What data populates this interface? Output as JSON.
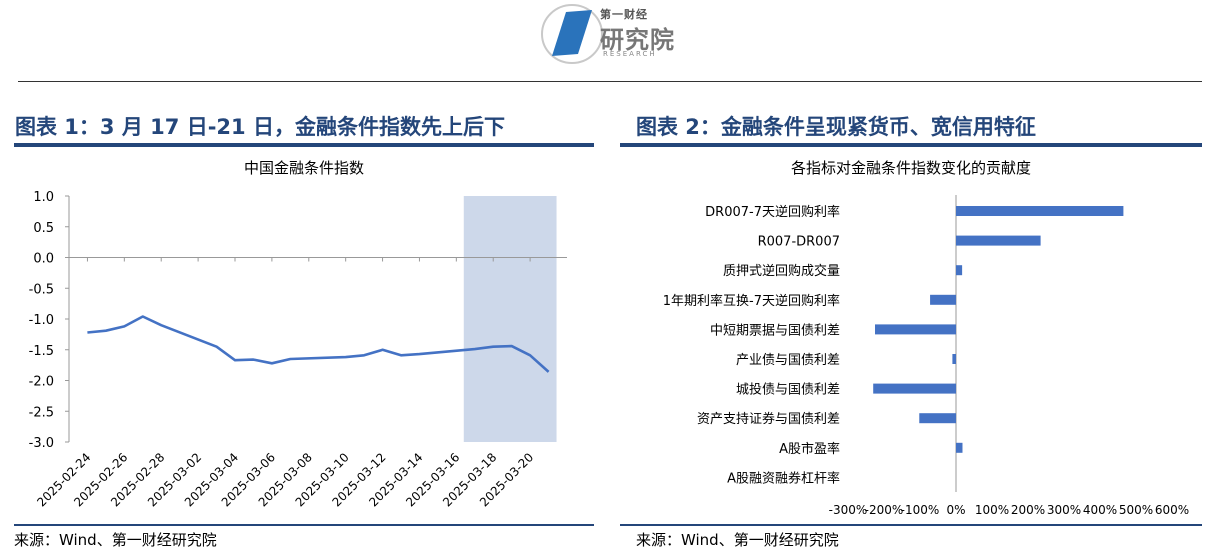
{
  "logo": {
    "small": "第一财经",
    "big": "研究院",
    "en": "RESEARCH"
  },
  "left_panel": {
    "title": "图表 1：3 月 17 日-21 日，金融条件指数先上后下",
    "source": "来源：Wind、第一财经研究院"
  },
  "right_panel": {
    "title": "图表 2：金融条件呈现紧货币、宽信用特征",
    "source": "来源：Wind、第一财经研究院"
  },
  "colors": {
    "series": "#4472c4",
    "highlight": "#cdd8ea",
    "title": "#24467a"
  },
  "chart_data": [
    {
      "type": "line",
      "title": "中国金融条件指数",
      "xlabel": "",
      "ylabel": "",
      "ylim": [
        -3.0,
        1.0
      ],
      "yticks": [
        "1.0",
        "0.5",
        "0.0",
        "-0.5",
        "-1.0",
        "-1.5",
        "-2.0",
        "-2.5",
        "-3.0"
      ],
      "x_tick_labels": [
        "2025-02-24",
        "2025-02-26",
        "2025-02-28",
        "2025-03-02",
        "2025-03-04",
        "2025-03-06",
        "2025-03-08",
        "2025-03-10",
        "2025-03-12",
        "2025-03-14",
        "2025-03-16",
        "2025-03-18",
        "2025-03-20"
      ],
      "x_range": [
        "2025-02-23",
        "2025-03-22"
      ],
      "highlight_range": [
        "2025-03-17",
        "2025-03-21"
      ],
      "series": [
        {
          "x": [
            "2025-02-24",
            "2025-02-25",
            "2025-02-26",
            "2025-02-27",
            "2025-02-28",
            "2025-03-03",
            "2025-03-04",
            "2025-03-05",
            "2025-03-06",
            "2025-03-07",
            "2025-03-10",
            "2025-03-11",
            "2025-03-12",
            "2025-03-13",
            "2025-03-14",
            "2025-03-17",
            "2025-03-18",
            "2025-03-19",
            "2025-03-20",
            "2025-03-21"
          ],
          "y": [
            -1.22,
            -1.19,
            -1.12,
            -0.96,
            -1.1,
            -1.45,
            -1.67,
            -1.66,
            -1.72,
            -1.65,
            -1.62,
            -1.59,
            -1.5,
            -1.59,
            -1.57,
            -1.49,
            -1.45,
            -1.44,
            -1.59,
            -1.86
          ]
        }
      ],
      "grid": false
    },
    {
      "type": "bar",
      "orientation": "horizontal",
      "title": "各指标对金融条件指数变化的贡献度",
      "categories": [
        "DR007-7天逆回购利率",
        "R007-DR007",
        "质押式逆回购成交量",
        "1年期利率互换-7天逆回购利率",
        "中短期票据与国债利差",
        "产业债与国债利差",
        "城投债与国债利差",
        "资产支持证券与国债利差",
        "A股市盈率",
        "A股融资融券杠杆率"
      ],
      "values": [
        465,
        235,
        17,
        -72,
        -225,
        -10,
        -230,
        -102,
        18,
        0
      ],
      "value_unit": "%",
      "xlim": [
        -300,
        600
      ],
      "xticks": [
        "-300%",
        "-200%",
        "-100%",
        "0%",
        "100%",
        "200%",
        "300%",
        "400%",
        "500%",
        "600%"
      ],
      "grid": false
    }
  ]
}
